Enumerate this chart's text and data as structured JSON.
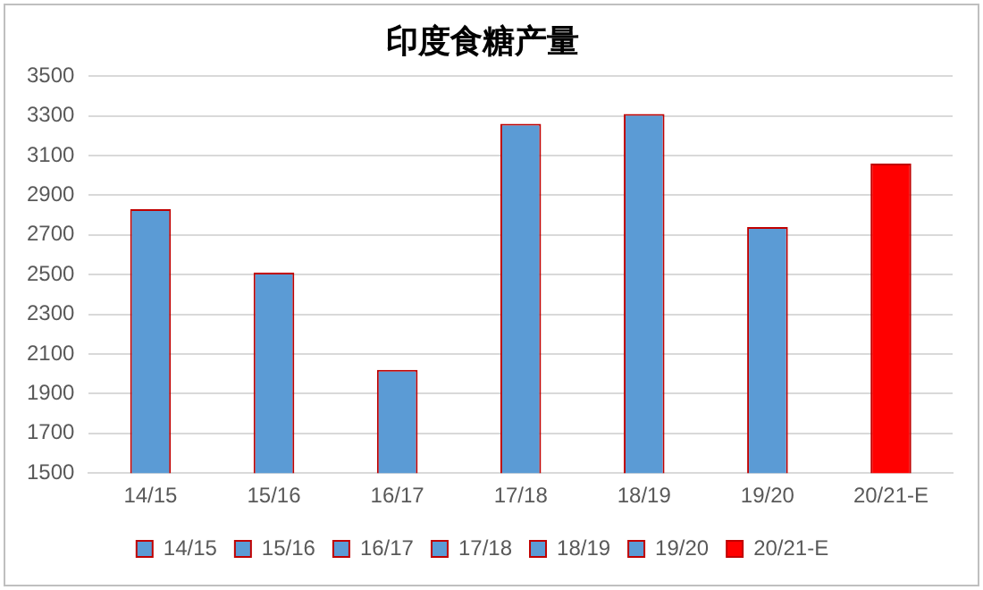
{
  "chart_data": {
    "type": "bar",
    "title": "印度食糖产量",
    "categories": [
      "14/15",
      "15/16",
      "16/17",
      "17/18",
      "18/19",
      "19/20",
      "20/21-E"
    ],
    "series": [
      {
        "name": "14/15",
        "color": "#5b9bd5",
        "values": [
          2830,
          null,
          null,
          null,
          null,
          null,
          null
        ]
      },
      {
        "name": "15/16",
        "color": "#5b9bd5",
        "values": [
          null,
          2510,
          null,
          null,
          null,
          null,
          null
        ]
      },
      {
        "name": "16/17",
        "color": "#5b9bd5",
        "values": [
          null,
          null,
          2020,
          null,
          null,
          null,
          null
        ]
      },
      {
        "name": "17/18",
        "color": "#5b9bd5",
        "values": [
          null,
          null,
          null,
          3260,
          null,
          null,
          null
        ]
      },
      {
        "name": "18/19",
        "color": "#5b9bd5",
        "values": [
          null,
          null,
          null,
          null,
          3310,
          null,
          null
        ]
      },
      {
        "name": "19/20",
        "color": "#5b9bd5",
        "values": [
          null,
          null,
          null,
          null,
          null,
          2740,
          null
        ]
      },
      {
        "name": "20/21-E",
        "color": "#ff0000",
        "values": [
          null,
          null,
          null,
          null,
          null,
          null,
          3060
        ]
      }
    ],
    "ylim": [
      1500,
      3500
    ],
    "yticks": [
      1500,
      1700,
      1900,
      2100,
      2300,
      2500,
      2700,
      2900,
      3100,
      3300,
      3500
    ],
    "grid": "y",
    "legend": "bottom"
  }
}
